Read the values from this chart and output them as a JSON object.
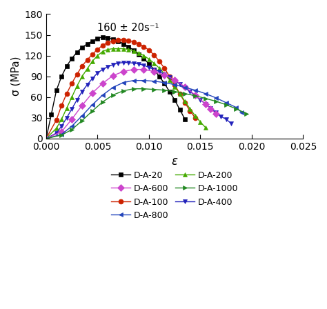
{
  "annotation": "160 ± 20s⁻¹",
  "xlabel": "ε",
  "ylabel_text": "σ (MPa)",
  "xlim": [
    0,
    0.025
  ],
  "ylim": [
    0,
    180
  ],
  "xticks": [
    0.0,
    0.005,
    0.01,
    0.015,
    0.02,
    0.025
  ],
  "yticks": [
    0,
    30,
    60,
    90,
    120,
    150,
    180
  ],
  "series": [
    {
      "label": "D-A-20",
      "color": "#000000",
      "marker": "s",
      "markevery": 1,
      "x": [
        0.0,
        0.0005,
        0.001,
        0.0015,
        0.002,
        0.0025,
        0.003,
        0.0035,
        0.004,
        0.0045,
        0.005,
        0.0055,
        0.006,
        0.0065,
        0.007,
        0.0075,
        0.008,
        0.0085,
        0.009,
        0.0095,
        0.01,
        0.0105,
        0.011,
        0.0115,
        0.012,
        0.0125,
        0.013,
        0.0135
      ],
      "y": [
        0,
        35,
        70,
        90,
        105,
        116,
        125,
        132,
        137,
        141,
        145,
        147,
        146,
        144,
        141,
        137,
        133,
        128,
        122,
        116,
        108,
        100,
        90,
        80,
        68,
        56,
        42,
        28
      ]
    },
    {
      "label": "D-A-100",
      "color": "#cc2200",
      "marker": "o",
      "markevery": 1,
      "x": [
        0.0,
        0.001,
        0.0015,
        0.002,
        0.0025,
        0.003,
        0.0035,
        0.004,
        0.0045,
        0.005,
        0.0055,
        0.006,
        0.0065,
        0.007,
        0.0075,
        0.008,
        0.0085,
        0.009,
        0.0095,
        0.01,
        0.0105,
        0.011,
        0.0115,
        0.012,
        0.0125,
        0.013,
        0.0135,
        0.014,
        0.0145
      ],
      "y": [
        0,
        27,
        48,
        65,
        80,
        93,
        105,
        114,
        122,
        129,
        135,
        139,
        141,
        143,
        143,
        142,
        140,
        137,
        133,
        128,
        121,
        112,
        102,
        90,
        78,
        65,
        52,
        40,
        30
      ]
    },
    {
      "label": "D-A-200",
      "color": "#44aa00",
      "marker": "^",
      "markevery": 1,
      "x": [
        0.0,
        0.001,
        0.0015,
        0.002,
        0.0025,
        0.003,
        0.0035,
        0.004,
        0.0045,
        0.005,
        0.0055,
        0.006,
        0.0065,
        0.007,
        0.0075,
        0.008,
        0.0085,
        0.009,
        0.0095,
        0.01,
        0.0105,
        0.011,
        0.0115,
        0.012,
        0.0125,
        0.013,
        0.0135,
        0.014,
        0.0145,
        0.015,
        0.0155
      ],
      "y": [
        0,
        15,
        28,
        44,
        60,
        76,
        90,
        101,
        112,
        120,
        126,
        129,
        130,
        130,
        130,
        129,
        127,
        124,
        120,
        115,
        109,
        102,
        94,
        85,
        75,
        65,
        54,
        43,
        33,
        24,
        16
      ]
    },
    {
      "label": "D-A-400",
      "color": "#2222bb",
      "marker": "v",
      "markevery": 1,
      "x": [
        0.0,
        0.001,
        0.0015,
        0.002,
        0.0025,
        0.003,
        0.0035,
        0.004,
        0.0045,
        0.005,
        0.0055,
        0.006,
        0.0065,
        0.007,
        0.0075,
        0.008,
        0.0085,
        0.009,
        0.0095,
        0.01,
        0.0105,
        0.011,
        0.0115,
        0.012,
        0.0125,
        0.013,
        0.0135,
        0.014,
        0.0145,
        0.015,
        0.0155,
        0.016,
        0.0165,
        0.017,
        0.0175,
        0.018
      ],
      "y": [
        0,
        8,
        18,
        30,
        43,
        56,
        68,
        78,
        87,
        95,
        100,
        104,
        107,
        109,
        110,
        110,
        109,
        108,
        106,
        103,
        100,
        97,
        93,
        89,
        84,
        79,
        74,
        68,
        62,
        56,
        50,
        44,
        38,
        32,
        28,
        22
      ]
    },
    {
      "label": "D-A-600",
      "color": "#cc44cc",
      "marker": "D",
      "markevery": 1,
      "x": [
        0.0,
        0.0015,
        0.0025,
        0.0035,
        0.0045,
        0.0055,
        0.0065,
        0.0075,
        0.0085,
        0.0095,
        0.0105,
        0.0115,
        0.0125,
        0.0135,
        0.0145,
        0.0155,
        0.016,
        0.0165
      ],
      "y": [
        0,
        10,
        28,
        48,
        66,
        80,
        91,
        97,
        100,
        100,
        97,
        92,
        85,
        75,
        63,
        50,
        43,
        36
      ]
    },
    {
      "label": "D-A-800",
      "color": "#2244bb",
      "marker": "<",
      "markevery": 1,
      "x": [
        0.0,
        0.0015,
        0.0025,
        0.0035,
        0.0045,
        0.0055,
        0.0065,
        0.0075,
        0.0085,
        0.0095,
        0.0105,
        0.0115,
        0.0125,
        0.0135,
        0.0145,
        0.0155,
        0.0165,
        0.0175,
        0.0185,
        0.019
      ],
      "y": [
        0,
        6,
        18,
        33,
        49,
        63,
        74,
        81,
        84,
        84,
        83,
        81,
        78,
        74,
        70,
        65,
        59,
        52,
        45,
        38
      ]
    },
    {
      "label": "D-A-1000",
      "color": "#228822",
      "marker": ">",
      "markevery": 1,
      "x": [
        0.0,
        0.0015,
        0.0025,
        0.0035,
        0.0045,
        0.0055,
        0.0065,
        0.0075,
        0.0085,
        0.0095,
        0.0105,
        0.0115,
        0.0125,
        0.0135,
        0.0145,
        0.0155,
        0.0165,
        0.0175,
        0.0185,
        0.0195
      ],
      "y": [
        0,
        5,
        13,
        26,
        40,
        53,
        63,
        69,
        72,
        72,
        71,
        70,
        68,
        65,
        62,
        58,
        54,
        49,
        43,
        36
      ]
    }
  ],
  "legend_ncol": 2,
  "figsize": [
    4.74,
    4.48
  ],
  "dpi": 100
}
